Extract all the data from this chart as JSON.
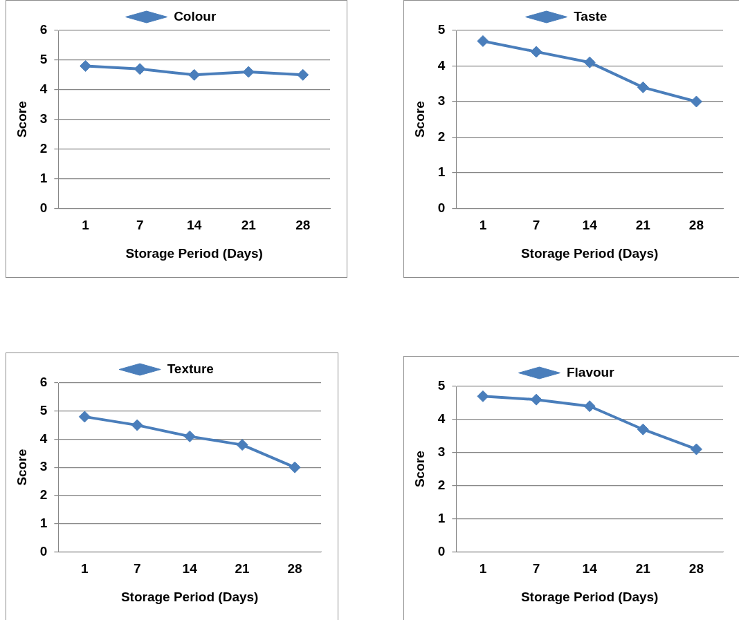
{
  "chart_data": [
    {
      "type": "line",
      "xlabel": "Storage Period (Days)",
      "ylabel": "Score",
      "categories": [
        "1",
        "7",
        "14",
        "21",
        "28"
      ],
      "series": [
        {
          "name": "Colour",
          "color": "#4a7ebb",
          "values": [
            4.8,
            4.7,
            4.5,
            4.6,
            4.5
          ]
        }
      ],
      "ylim": [
        0,
        6
      ],
      "yticks": [
        0,
        1,
        2,
        3,
        4,
        5,
        6
      ],
      "grid": "y",
      "legend": "top",
      "marker": "diamond",
      "line_style": "solid"
    },
    {
      "type": "line",
      "xlabel": "Storage Period (Days)",
      "ylabel": "Score",
      "categories": [
        "1",
        "7",
        "14",
        "21",
        "28"
      ],
      "series": [
        {
          "name": "Taste",
          "color": "#4a7ebb",
          "values": [
            4.7,
            4.4,
            4.1,
            3.4,
            3.0
          ]
        }
      ],
      "ylim": [
        0,
        5
      ],
      "yticks": [
        0,
        1,
        2,
        3,
        4,
        5
      ],
      "grid": "y",
      "legend": "top",
      "marker": "diamond",
      "line_style": "solid"
    },
    {
      "type": "line",
      "xlabel": "Storage Period (Days)",
      "ylabel": "Score",
      "categories": [
        "1",
        "7",
        "14",
        "21",
        "28"
      ],
      "series": [
        {
          "name": "Texture",
          "color": "#4a7ebb",
          "values": [
            4.8,
            4.5,
            4.1,
            3.8,
            3.0
          ]
        }
      ],
      "ylim": [
        0,
        6
      ],
      "yticks": [
        0,
        1,
        2,
        3,
        4,
        5,
        6
      ],
      "grid": "y",
      "legend": "top",
      "marker": "diamond",
      "line_style": "solid"
    },
    {
      "type": "line",
      "xlabel": "Storage Period (Days)",
      "ylabel": "Score",
      "categories": [
        "1",
        "7",
        "14",
        "21",
        "28"
      ],
      "series": [
        {
          "name": "Flavour",
          "color": "#4a7ebb",
          "values": [
            4.7,
            4.6,
            4.4,
            3.7,
            3.1
          ]
        }
      ],
      "ylim": [
        0,
        5
      ],
      "yticks": [
        0,
        1,
        2,
        3,
        4,
        5
      ],
      "grid": "y",
      "legend": "top",
      "marker": "diamond",
      "line_style": "solid"
    }
  ]
}
